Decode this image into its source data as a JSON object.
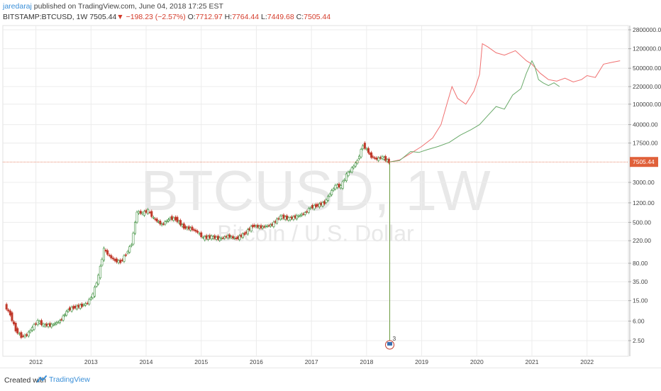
{
  "header": {
    "author": "jaredaraj",
    "published": "published on TradingView.com, June 04, 2018 17:25 EST",
    "symbol": "BITSTAMP:BTCUSD, 1W",
    "last": "7505.44",
    "arrow": "▼",
    "change": "−198.23 (−2.57%)",
    "o_label": "O:",
    "o": "7712.97",
    "h_label": "H:",
    "h": "7764.44",
    "l_label": "L:",
    "l": "7449.68",
    "c_label": "C:",
    "c": "7505.44"
  },
  "watermark": {
    "symbol": "BTCUSD, 1W",
    "name": "Bitcoin / U.S. Dollar"
  },
  "footer": {
    "created_with": "Created with",
    "brand": "TradingView"
  },
  "colors": {
    "up": "#3c8f3c",
    "down": "#c0392b",
    "projection_red": "#f07070",
    "projection_green": "#6aaa6a",
    "price_line": "#e0603a",
    "price_badge": "#e0603a",
    "grid": "#ececec"
  },
  "chart_data": {
    "type": "line",
    "scale": "log",
    "ylim": [
      1.5,
      4000000
    ],
    "y_ticks": [
      "2800000.00",
      "1200000.00",
      "500000.00",
      "220000.00",
      "100000.00",
      "40000.00",
      "17500.00",
      "3000.00",
      "1200.00",
      "500.00",
      "220.00",
      "80.00",
      "35.00",
      "15.00",
      "6.00",
      "2.50"
    ],
    "x_ticks": [
      "2012",
      "2013",
      "2014",
      "2015",
      "2016",
      "2017",
      "2018",
      "2019",
      "2020",
      "2021",
      "2022"
    ],
    "current_price": 7505.44,
    "current_price_label": "7505.44",
    "event_marker_count": "3",
    "series": [
      {
        "kind": "candles",
        "points": [
          [
            2011.45,
            12
          ],
          [
            2011.55,
            8
          ],
          [
            2011.65,
            4
          ],
          [
            2011.75,
            3
          ],
          [
            2011.85,
            3.2
          ],
          [
            2011.95,
            4.5
          ],
          [
            2012.05,
            6
          ],
          [
            2012.15,
            5
          ],
          [
            2012.3,
            5
          ],
          [
            2012.45,
            6
          ],
          [
            2012.6,
            10
          ],
          [
            2012.7,
            11
          ],
          [
            2012.85,
            12
          ],
          [
            2012.95,
            13.5
          ],
          [
            2013.05,
            20
          ],
          [
            2013.15,
            45
          ],
          [
            2013.25,
            150
          ],
          [
            2013.35,
            110
          ],
          [
            2013.45,
            90
          ],
          [
            2013.55,
            85
          ],
          [
            2013.65,
            120
          ],
          [
            2013.75,
            190
          ],
          [
            2013.85,
            800
          ],
          [
            2013.95,
            750
          ],
          [
            2014.05,
            850
          ],
          [
            2014.15,
            600
          ],
          [
            2014.3,
            450
          ],
          [
            2014.45,
            600
          ],
          [
            2014.55,
            580
          ],
          [
            2014.7,
            400
          ],
          [
            2014.85,
            370
          ],
          [
            2014.95,
            320
          ],
          [
            2015.05,
            250
          ],
          [
            2015.2,
            260
          ],
          [
            2015.35,
            240
          ],
          [
            2015.5,
            270
          ],
          [
            2015.65,
            240
          ],
          [
            2015.8,
            300
          ],
          [
            2015.95,
            430
          ],
          [
            2016.1,
            400
          ],
          [
            2016.3,
            450
          ],
          [
            2016.45,
            650
          ],
          [
            2016.6,
            590
          ],
          [
            2016.75,
            650
          ],
          [
            2016.9,
            760
          ],
          [
            2017.0,
            980
          ],
          [
            2017.1,
            1050
          ],
          [
            2017.25,
            1200
          ],
          [
            2017.35,
            1800
          ],
          [
            2017.45,
            2600
          ],
          [
            2017.55,
            2500
          ],
          [
            2017.65,
            4200
          ],
          [
            2017.75,
            5600
          ],
          [
            2017.85,
            8000
          ],
          [
            2017.95,
            16000
          ],
          [
            2018.02,
            13000
          ],
          [
            2018.1,
            9500
          ],
          [
            2018.2,
            8500
          ],
          [
            2018.3,
            9300
          ],
          [
            2018.42,
            7505
          ]
        ]
      },
      {
        "name": "",
        "kind": "line",
        "color_key": "projection_red",
        "points": [
          [
            2018.42,
            7505
          ],
          [
            2018.6,
            8200
          ],
          [
            2018.8,
            11000
          ],
          [
            2019.0,
            15000
          ],
          [
            2019.2,
            22000
          ],
          [
            2019.35,
            40000
          ],
          [
            2019.45,
            95000
          ],
          [
            2019.55,
            220000
          ],
          [
            2019.65,
            130000
          ],
          [
            2019.8,
            100000
          ],
          [
            2019.95,
            180000
          ],
          [
            2020.05,
            380000
          ],
          [
            2020.1,
            1500000
          ],
          [
            2020.2,
            1300000
          ],
          [
            2020.35,
            1000000
          ],
          [
            2020.5,
            900000
          ],
          [
            2020.7,
            1100000
          ],
          [
            2020.9,
            700000
          ],
          [
            2021.0,
            600000
          ],
          [
            2021.15,
            400000
          ],
          [
            2021.3,
            300000
          ],
          [
            2021.45,
            280000
          ],
          [
            2021.6,
            320000
          ],
          [
            2021.75,
            270000
          ],
          [
            2021.9,
            300000
          ],
          [
            2022.0,
            360000
          ],
          [
            2022.15,
            330000
          ],
          [
            2022.3,
            600000
          ],
          [
            2022.45,
            650000
          ],
          [
            2022.6,
            700000
          ]
        ]
      },
      {
        "name": "",
        "kind": "line",
        "color_key": "projection_green",
        "points": [
          [
            2018.42,
            7505
          ],
          [
            2018.6,
            8000
          ],
          [
            2018.8,
            12000
          ],
          [
            2018.95,
            11500
          ],
          [
            2019.1,
            13000
          ],
          [
            2019.3,
            15000
          ],
          [
            2019.5,
            18000
          ],
          [
            2019.7,
            25000
          ],
          [
            2019.9,
            32000
          ],
          [
            2020.05,
            40000
          ],
          [
            2020.2,
            60000
          ],
          [
            2020.35,
            90000
          ],
          [
            2020.5,
            80000
          ],
          [
            2020.65,
            150000
          ],
          [
            2020.8,
            200000
          ],
          [
            2020.9,
            400000
          ],
          [
            2021.0,
            700000
          ],
          [
            2021.05,
            550000
          ],
          [
            2021.12,
            300000
          ],
          [
            2021.2,
            260000
          ],
          [
            2021.3,
            230000
          ],
          [
            2021.4,
            260000
          ],
          [
            2021.5,
            220000
          ]
        ]
      }
    ]
  }
}
